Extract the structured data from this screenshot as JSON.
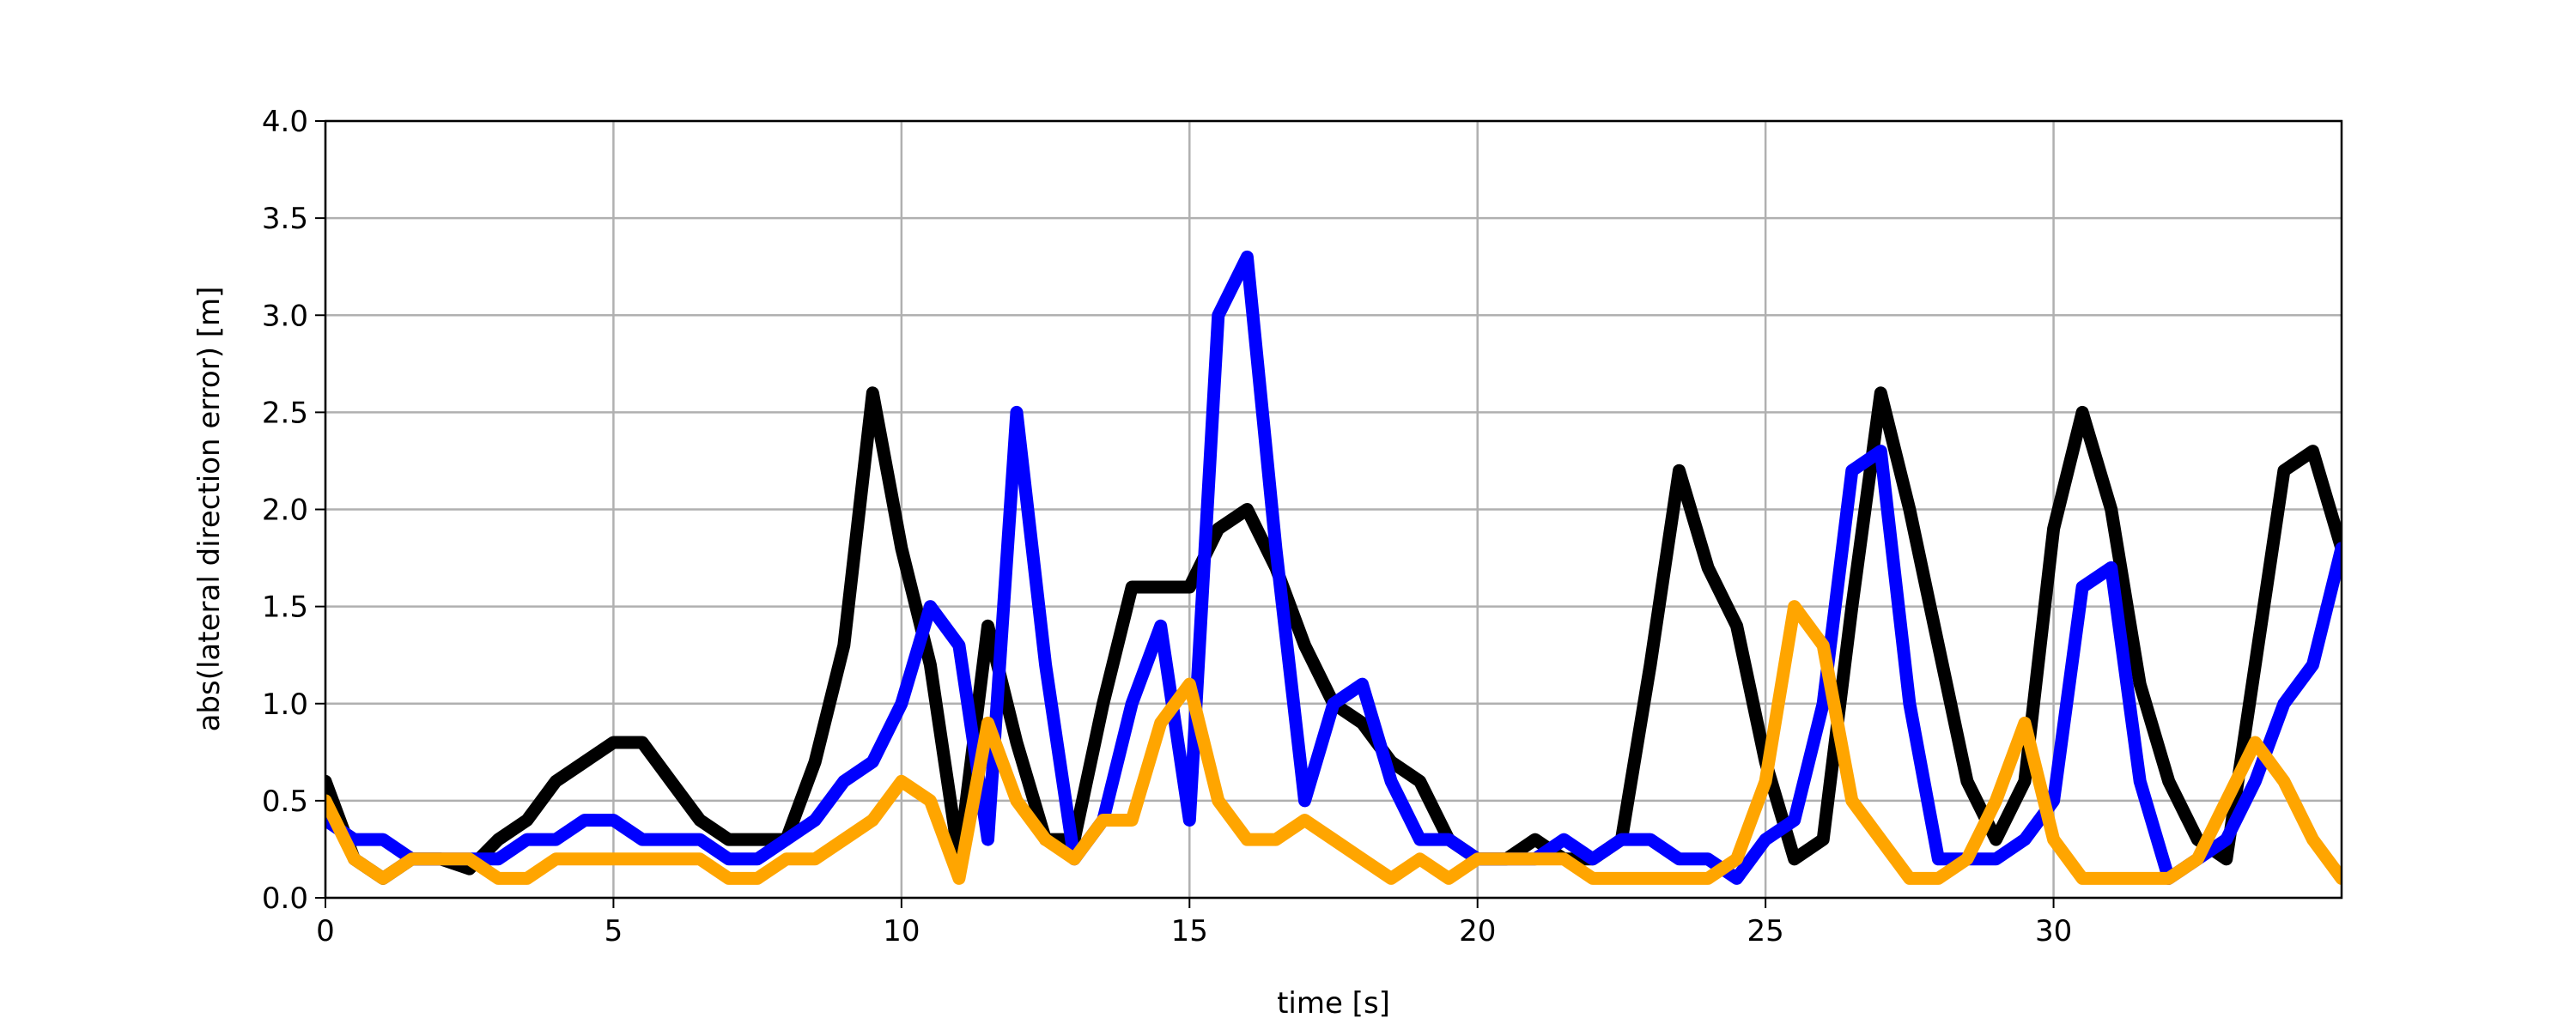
{
  "chart_data": {
    "type": "line",
    "xlabel": "time [s]",
    "ylabel": "abs(lateral direction error) [m]",
    "x": [
      0,
      0.5,
      1,
      1.5,
      2,
      2.5,
      3,
      3.5,
      4,
      4.5,
      5,
      5.5,
      6,
      6.5,
      7,
      7.5,
      8,
      8.5,
      9,
      9.5,
      10,
      10.5,
      11,
      11.5,
      12,
      12.5,
      13,
      13.5,
      14,
      14.5,
      15,
      15.5,
      16,
      16.5,
      17,
      17.5,
      18,
      18.5,
      19,
      19.5,
      20,
      20.5,
      21,
      21.5,
      22,
      22.5,
      23,
      23.5,
      24,
      24.5,
      25,
      25.5,
      26,
      26.5,
      27,
      27.5,
      28,
      28.5,
      29,
      29.5,
      30,
      30.5,
      31,
      31.5,
      32,
      32.5,
      33,
      33.5,
      34,
      34.5,
      35
    ],
    "series": [
      {
        "color": "#000000",
        "values": [
          0.6,
          0.2,
          0.1,
          0.2,
          0.2,
          0.15,
          0.3,
          0.4,
          0.6,
          0.7,
          0.8,
          0.8,
          0.6,
          0.4,
          0.3,
          0.3,
          0.3,
          0.7,
          1.3,
          2.6,
          1.8,
          1.2,
          0.2,
          1.4,
          0.8,
          0.3,
          0.3,
          1.0,
          1.6,
          1.6,
          1.6,
          1.9,
          2.0,
          1.7,
          1.3,
          1.0,
          0.9,
          0.7,
          0.6,
          0.3,
          0.2,
          0.2,
          0.3,
          0.2,
          0.2,
          0.3,
          1.2,
          2.2,
          1.7,
          1.4,
          0.7,
          0.2,
          0.3,
          1.5,
          2.6,
          2.0,
          1.3,
          0.6,
          0.3,
          0.6,
          1.9,
          2.5,
          2.0,
          1.1,
          0.6,
          0.3,
          0.2,
          1.2,
          2.2,
          2.3,
          1.8
        ]
      },
      {
        "color": "#0000ff",
        "values": [
          0.4,
          0.3,
          0.3,
          0.2,
          0.2,
          0.2,
          0.2,
          0.3,
          0.3,
          0.4,
          0.4,
          0.3,
          0.3,
          0.3,
          0.2,
          0.2,
          0.3,
          0.4,
          0.6,
          0.7,
          1.0,
          1.5,
          1.3,
          0.3,
          2.5,
          1.2,
          0.2,
          0.4,
          1.0,
          1.4,
          0.4,
          3.0,
          3.3,
          1.8,
          0.5,
          1.0,
          1.1,
          0.6,
          0.3,
          0.3,
          0.2,
          0.2,
          0.2,
          0.3,
          0.2,
          0.3,
          0.3,
          0.2,
          0.2,
          0.1,
          0.3,
          0.4,
          1.0,
          2.2,
          2.3,
          1.0,
          0.2,
          0.2,
          0.2,
          0.3,
          0.5,
          1.6,
          1.7,
          0.6,
          0.1,
          0.2,
          0.3,
          0.6,
          1.0,
          1.2,
          1.8
        ]
      },
      {
        "color": "#ffa500",
        "values": [
          0.5,
          0.2,
          0.1,
          0.2,
          0.2,
          0.2,
          0.1,
          0.1,
          0.2,
          0.2,
          0.2,
          0.2,
          0.2,
          0.2,
          0.1,
          0.1,
          0.2,
          0.2,
          0.3,
          0.4,
          0.6,
          0.5,
          0.1,
          0.9,
          0.5,
          0.3,
          0.2,
          0.4,
          0.4,
          0.9,
          1.1,
          0.5,
          0.3,
          0.3,
          0.4,
          0.3,
          0.2,
          0.1,
          0.2,
          0.1,
          0.2,
          0.2,
          0.2,
          0.2,
          0.1,
          0.1,
          0.1,
          0.1,
          0.1,
          0.2,
          0.6,
          1.5,
          1.3,
          0.5,
          0.3,
          0.1,
          0.1,
          0.2,
          0.5,
          0.9,
          0.3,
          0.1,
          0.1,
          0.1,
          0.1,
          0.2,
          0.5,
          0.8,
          0.6,
          0.3,
          0.1
        ]
      }
    ],
    "xlim": [
      0,
      35
    ],
    "xticks": [
      0,
      5,
      10,
      15,
      20,
      25,
      30
    ],
    "ylim": [
      0,
      4
    ],
    "yticks": [
      {
        "value": 0,
        "label": "0.0"
      },
      {
        "value": 0.5,
        "label": "0.5"
      },
      {
        "value": 1,
        "label": "1.0"
      },
      {
        "value": 1.5,
        "label": "1.5"
      },
      {
        "value": 2,
        "label": "2.0"
      },
      {
        "value": 2.5,
        "label": "2.5"
      },
      {
        "value": 3,
        "label": "3.0"
      },
      {
        "value": 3.5,
        "label": "3.5"
      },
      {
        "value": 4,
        "label": "4.0"
      }
    ],
    "grid": true
  }
}
